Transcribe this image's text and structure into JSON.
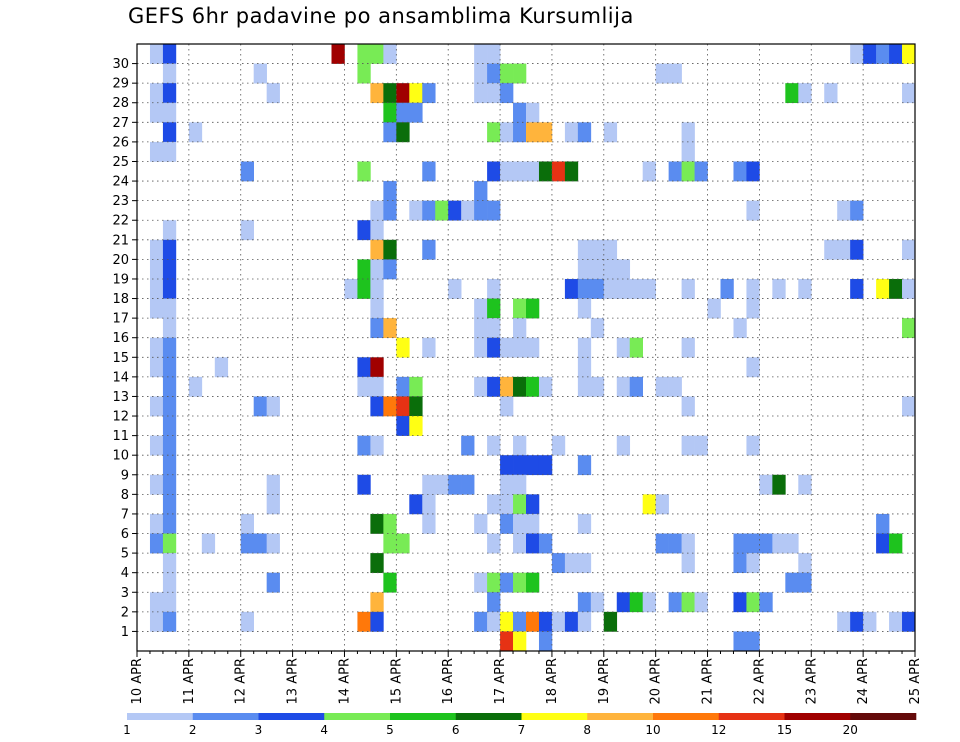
{
  "chart_data": {
    "type": "heatmap",
    "title": "GEFS 6hr padavine po ansamblima Kursumlija",
    "x_start_day": 10,
    "x_steps_per_day": 4,
    "x_steps": 60,
    "x_tick_labels": [
      "10 APR",
      "11 APR",
      "12 APR",
      "13 APR",
      "14 APR",
      "15 APR",
      "16 APR",
      "17 APR",
      "18 APR",
      "19 APR",
      "20 APR",
      "21 APR",
      "22 APR",
      "23 APR",
      "24 APR",
      "25 APR"
    ],
    "y_members": 30,
    "y_tick_labels": [
      "1",
      "2",
      "3",
      "4",
      "5",
      "6",
      "7",
      "8",
      "9",
      "10",
      "11",
      "12",
      "13",
      "14",
      "15",
      "16",
      "17",
      "18",
      "19",
      "20",
      "21",
      "22",
      "23",
      "24",
      "25",
      "26",
      "27",
      "28",
      "29",
      "30"
    ],
    "grid": true,
    "legend_position": "bottom",
    "legend_labels": [
      "1",
      "2",
      "3",
      "4",
      "5",
      "6",
      "7",
      "8",
      "10",
      "12",
      "15",
      "20"
    ],
    "legend_colors": [
      "#b4c8f5",
      "#5a8cf0",
      "#1e4be6",
      "#78eb55",
      "#1ec31e",
      "#0a6e0a",
      "#ffff14",
      "#ffb43c",
      "#ff780a",
      "#e63214",
      "#a00000",
      "#640a0a"
    ],
    "cells": [
      [
        30,
        1,
        0
      ],
      [
        30,
        2,
        2
      ],
      [
        30,
        15,
        10
      ],
      [
        30,
        17,
        3
      ],
      [
        30,
        18,
        3
      ],
      [
        30,
        19,
        0
      ],
      [
        30,
        26,
        0
      ],
      [
        30,
        27,
        0
      ],
      [
        30,
        55,
        0
      ],
      [
        30,
        56,
        2
      ],
      [
        30,
        57,
        1
      ],
      [
        30,
        58,
        2
      ],
      [
        30,
        59,
        6
      ],
      [
        29,
        2,
        0
      ],
      [
        29,
        9,
        0
      ],
      [
        29,
        17,
        3
      ],
      [
        29,
        26,
        0
      ],
      [
        29,
        27,
        1
      ],
      [
        29,
        28,
        3
      ],
      [
        29,
        29,
        3
      ],
      [
        29,
        40,
        0
      ],
      [
        29,
        41,
        0
      ],
      [
        28,
        1,
        0
      ],
      [
        28,
        2,
        2
      ],
      [
        28,
        10,
        0
      ],
      [
        28,
        18,
        7
      ],
      [
        28,
        19,
        5
      ],
      [
        28,
        20,
        10
      ],
      [
        28,
        21,
        6
      ],
      [
        28,
        22,
        1
      ],
      [
        28,
        26,
        0
      ],
      [
        28,
        27,
        0
      ],
      [
        28,
        28,
        1
      ],
      [
        28,
        50,
        4
      ],
      [
        28,
        51,
        0
      ],
      [
        28,
        53,
        0
      ],
      [
        28,
        59,
        0
      ],
      [
        27,
        1,
        0
      ],
      [
        27,
        2,
        0
      ],
      [
        27,
        19,
        4
      ],
      [
        27,
        20,
        1
      ],
      [
        27,
        21,
        1
      ],
      [
        27,
        29,
        1
      ],
      [
        27,
        30,
        0
      ],
      [
        26,
        2,
        2
      ],
      [
        26,
        4,
        0
      ],
      [
        26,
        19,
        1
      ],
      [
        26,
        20,
        5
      ],
      [
        26,
        27,
        3
      ],
      [
        26,
        28,
        0
      ],
      [
        26,
        29,
        1
      ],
      [
        26,
        30,
        7
      ],
      [
        26,
        31,
        7
      ],
      [
        26,
        33,
        0
      ],
      [
        26,
        34,
        1
      ],
      [
        26,
        36,
        0
      ],
      [
        26,
        42,
        0
      ],
      [
        25,
        1,
        0
      ],
      [
        25,
        2,
        0
      ],
      [
        25,
        42,
        0
      ],
      [
        24,
        8,
        1
      ],
      [
        24,
        17,
        3
      ],
      [
        24,
        22,
        1
      ],
      [
        24,
        27,
        2
      ],
      [
        24,
        28,
        0
      ],
      [
        24,
        29,
        0
      ],
      [
        24,
        30,
        0
      ],
      [
        24,
        31,
        5
      ],
      [
        24,
        32,
        9
      ],
      [
        24,
        33,
        5
      ],
      [
        24,
        39,
        0
      ],
      [
        24,
        41,
        1
      ],
      [
        24,
        42,
        3
      ],
      [
        24,
        43,
        1
      ],
      [
        24,
        46,
        1
      ],
      [
        24,
        47,
        2
      ],
      [
        23,
        19,
        1
      ],
      [
        23,
        26,
        1
      ],
      [
        22,
        18,
        0
      ],
      [
        22,
        19,
        1
      ],
      [
        22,
        21,
        0
      ],
      [
        22,
        22,
        1
      ],
      [
        22,
        23,
        3
      ],
      [
        22,
        24,
        2
      ],
      [
        22,
        25,
        0
      ],
      [
        22,
        26,
        1
      ],
      [
        22,
        27,
        1
      ],
      [
        22,
        47,
        0
      ],
      [
        22,
        54,
        0
      ],
      [
        22,
        55,
        1
      ],
      [
        21,
        2,
        0
      ],
      [
        21,
        8,
        0
      ],
      [
        21,
        17,
        2
      ],
      [
        21,
        18,
        0
      ],
      [
        20,
        1,
        0
      ],
      [
        20,
        2,
        2
      ],
      [
        20,
        18,
        7
      ],
      [
        20,
        19,
        5
      ],
      [
        20,
        22,
        1
      ],
      [
        20,
        34,
        0
      ],
      [
        20,
        35,
        0
      ],
      [
        20,
        36,
        0
      ],
      [
        20,
        53,
        0
      ],
      [
        20,
        54,
        0
      ],
      [
        20,
        55,
        2
      ],
      [
        20,
        59,
        0
      ],
      [
        19,
        1,
        0
      ],
      [
        19,
        2,
        2
      ],
      [
        19,
        17,
        4
      ],
      [
        19,
        18,
        0
      ],
      [
        19,
        19,
        1
      ],
      [
        19,
        34,
        0
      ],
      [
        19,
        35,
        0
      ],
      [
        19,
        36,
        0
      ],
      [
        19,
        37,
        0
      ],
      [
        18,
        1,
        0
      ],
      [
        18,
        2,
        2
      ],
      [
        18,
        16,
        0
      ],
      [
        18,
        17,
        4
      ],
      [
        18,
        18,
        0
      ],
      [
        18,
        24,
        0
      ],
      [
        18,
        27,
        0
      ],
      [
        18,
        33,
        2
      ],
      [
        18,
        34,
        1
      ],
      [
        18,
        35,
        1
      ],
      [
        18,
        36,
        0
      ],
      [
        18,
        37,
        0
      ],
      [
        18,
        38,
        0
      ],
      [
        18,
        39,
        0
      ],
      [
        18,
        42,
        0
      ],
      [
        18,
        45,
        1
      ],
      [
        18,
        47,
        0
      ],
      [
        18,
        49,
        0
      ],
      [
        18,
        51,
        0
      ],
      [
        18,
        55,
        2
      ],
      [
        18,
        57,
        6
      ],
      [
        18,
        58,
        5
      ],
      [
        18,
        59,
        0
      ],
      [
        17,
        1,
        0
      ],
      [
        17,
        2,
        0
      ],
      [
        17,
        18,
        0
      ],
      [
        17,
        26,
        0
      ],
      [
        17,
        27,
        4
      ],
      [
        17,
        29,
        3
      ],
      [
        17,
        30,
        4
      ],
      [
        17,
        34,
        0
      ],
      [
        17,
        44,
        0
      ],
      [
        17,
        47,
        0
      ],
      [
        16,
        2,
        0
      ],
      [
        16,
        18,
        1
      ],
      [
        16,
        19,
        7
      ],
      [
        16,
        26,
        0
      ],
      [
        16,
        27,
        0
      ],
      [
        16,
        29,
        0
      ],
      [
        16,
        35,
        0
      ],
      [
        16,
        46,
        0
      ],
      [
        16,
        59,
        3
      ],
      [
        15,
        1,
        0
      ],
      [
        15,
        2,
        1
      ],
      [
        15,
        20,
        6
      ],
      [
        15,
        22,
        0
      ],
      [
        15,
        26,
        0
      ],
      [
        15,
        27,
        2
      ],
      [
        15,
        28,
        0
      ],
      [
        15,
        29,
        0
      ],
      [
        15,
        30,
        0
      ],
      [
        15,
        34,
        0
      ],
      [
        15,
        37,
        0
      ],
      [
        15,
        38,
        3
      ],
      [
        15,
        42,
        0
      ],
      [
        14,
        1,
        0
      ],
      [
        14,
        2,
        1
      ],
      [
        14,
        6,
        0
      ],
      [
        14,
        17,
        2
      ],
      [
        14,
        18,
        10
      ],
      [
        14,
        34,
        0
      ],
      [
        14,
        47,
        0
      ],
      [
        13,
        2,
        1
      ],
      [
        13,
        4,
        0
      ],
      [
        13,
        17,
        0
      ],
      [
        13,
        18,
        0
      ],
      [
        13,
        20,
        1
      ],
      [
        13,
        21,
        3
      ],
      [
        13,
        26,
        0
      ],
      [
        13,
        27,
        2
      ],
      [
        13,
        28,
        7
      ],
      [
        13,
        29,
        5
      ],
      [
        13,
        30,
        4
      ],
      [
        13,
        31,
        0
      ],
      [
        13,
        34,
        0
      ],
      [
        13,
        35,
        0
      ],
      [
        13,
        37,
        0
      ],
      [
        13,
        38,
        1
      ],
      [
        13,
        40,
        0
      ],
      [
        13,
        41,
        0
      ],
      [
        12,
        1,
        0
      ],
      [
        12,
        2,
        1
      ],
      [
        12,
        9,
        1
      ],
      [
        12,
        10,
        0
      ],
      [
        12,
        18,
        2
      ],
      [
        12,
        19,
        8
      ],
      [
        12,
        20,
        9
      ],
      [
        12,
        21,
        5
      ],
      [
        12,
        28,
        0
      ],
      [
        12,
        42,
        0
      ],
      [
        12,
        59,
        0
      ],
      [
        11,
        2,
        1
      ],
      [
        11,
        20,
        2
      ],
      [
        11,
        21,
        6
      ],
      [
        10,
        1,
        0
      ],
      [
        10,
        2,
        1
      ],
      [
        10,
        17,
        1
      ],
      [
        10,
        18,
        0
      ],
      [
        10,
        25,
        1
      ],
      [
        10,
        27,
        0
      ],
      [
        10,
        29,
        0
      ],
      [
        10,
        32,
        0
      ],
      [
        10,
        37,
        0
      ],
      [
        10,
        42,
        0
      ],
      [
        10,
        43,
        0
      ],
      [
        10,
        47,
        0
      ],
      [
        9,
        2,
        1
      ],
      [
        9,
        28,
        2
      ],
      [
        9,
        29,
        2
      ],
      [
        9,
        30,
        2
      ],
      [
        9,
        31,
        2
      ],
      [
        9,
        34,
        1
      ],
      [
        8,
        1,
        0
      ],
      [
        8,
        2,
        1
      ],
      [
        8,
        10,
        0
      ],
      [
        8,
        17,
        2
      ],
      [
        8,
        22,
        0
      ],
      [
        8,
        23,
        0
      ],
      [
        8,
        24,
        1
      ],
      [
        8,
        25,
        1
      ],
      [
        8,
        28,
        0
      ],
      [
        8,
        29,
        0
      ],
      [
        8,
        48,
        0
      ],
      [
        8,
        49,
        5
      ],
      [
        8,
        51,
        0
      ],
      [
        7,
        2,
        1
      ],
      [
        7,
        10,
        0
      ],
      [
        7,
        21,
        2
      ],
      [
        7,
        22,
        0
      ],
      [
        7,
        27,
        0
      ],
      [
        7,
        28,
        0
      ],
      [
        7,
        29,
        3
      ],
      [
        7,
        30,
        2
      ],
      [
        7,
        39,
        6
      ],
      [
        7,
        40,
        0
      ],
      [
        6,
        1,
        0
      ],
      [
        6,
        2,
        1
      ],
      [
        6,
        8,
        0
      ],
      [
        6,
        18,
        5
      ],
      [
        6,
        19,
        3
      ],
      [
        6,
        22,
        0
      ],
      [
        6,
        26,
        0
      ],
      [
        6,
        28,
        1
      ],
      [
        6,
        29,
        0
      ],
      [
        6,
        30,
        0
      ],
      [
        6,
        34,
        0
      ],
      [
        6,
        57,
        1
      ],
      [
        5,
        1,
        1
      ],
      [
        5,
        2,
        3
      ],
      [
        5,
        5,
        0
      ],
      [
        5,
        8,
        1
      ],
      [
        5,
        9,
        1
      ],
      [
        5,
        10,
        0
      ],
      [
        5,
        19,
        3
      ],
      [
        5,
        20,
        3
      ],
      [
        5,
        27,
        0
      ],
      [
        5,
        29,
        0
      ],
      [
        5,
        30,
        2
      ],
      [
        5,
        31,
        1
      ],
      [
        5,
        40,
        1
      ],
      [
        5,
        41,
        1
      ],
      [
        5,
        42,
        0
      ],
      [
        5,
        46,
        1
      ],
      [
        5,
        47,
        1
      ],
      [
        5,
        48,
        1
      ],
      [
        5,
        49,
        0
      ],
      [
        5,
        50,
        0
      ],
      [
        5,
        57,
        2
      ],
      [
        5,
        58,
        4
      ],
      [
        4,
        2,
        0
      ],
      [
        4,
        18,
        5
      ],
      [
        4,
        32,
        1
      ],
      [
        4,
        33,
        0
      ],
      [
        4,
        34,
        0
      ],
      [
        4,
        42,
        0
      ],
      [
        4,
        46,
        1
      ],
      [
        4,
        47,
        0
      ],
      [
        4,
        51,
        0
      ],
      [
        3,
        2,
        0
      ],
      [
        3,
        10,
        1
      ],
      [
        3,
        19,
        4
      ],
      [
        3,
        26,
        0
      ],
      [
        3,
        27,
        3
      ],
      [
        3,
        28,
        1
      ],
      [
        3,
        29,
        3
      ],
      [
        3,
        30,
        4
      ],
      [
        3,
        50,
        1
      ],
      [
        3,
        51,
        1
      ],
      [
        2,
        1,
        0
      ],
      [
        2,
        2,
        0
      ],
      [
        2,
        18,
        7
      ],
      [
        2,
        27,
        1
      ],
      [
        2,
        34,
        1
      ],
      [
        2,
        35,
        0
      ],
      [
        2,
        37,
        2
      ],
      [
        2,
        38,
        4
      ],
      [
        2,
        39,
        0
      ],
      [
        2,
        41,
        1
      ],
      [
        2,
        42,
        3
      ],
      [
        2,
        43,
        0
      ],
      [
        2,
        46,
        2
      ],
      [
        2,
        47,
        3
      ],
      [
        2,
        48,
        1
      ],
      [
        1,
        1,
        0
      ],
      [
        1,
        2,
        1
      ],
      [
        1,
        8,
        0
      ],
      [
        1,
        17,
        8
      ],
      [
        1,
        18,
        2
      ],
      [
        1,
        26,
        1
      ],
      [
        1,
        27,
        0
      ],
      [
        1,
        28,
        6
      ],
      [
        1,
        29,
        1
      ],
      [
        1,
        30,
        8
      ],
      [
        1,
        31,
        2
      ],
      [
        1,
        32,
        0
      ],
      [
        1,
        33,
        2
      ],
      [
        1,
        34,
        0
      ],
      [
        1,
        36,
        5
      ],
      [
        1,
        54,
        0
      ],
      [
        1,
        55,
        2
      ],
      [
        1,
        56,
        0
      ],
      [
        1,
        58,
        0
      ],
      [
        1,
        59,
        2
      ],
      [
        0,
        28,
        9
      ],
      [
        0,
        29,
        6
      ],
      [
        0,
        31,
        1
      ],
      [
        0,
        46,
        1
      ],
      [
        0,
        47,
        1
      ]
    ]
  }
}
